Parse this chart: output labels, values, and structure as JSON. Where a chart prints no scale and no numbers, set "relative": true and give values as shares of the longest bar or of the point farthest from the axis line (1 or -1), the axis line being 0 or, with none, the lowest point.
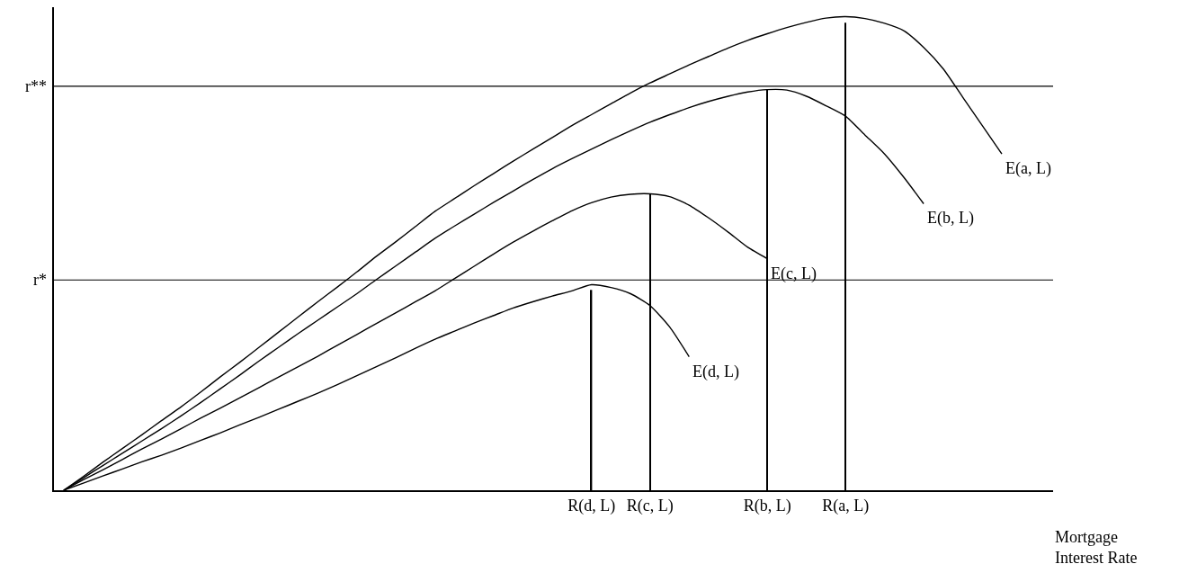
{
  "chart_data": {
    "type": "line",
    "relative": true,
    "xlabel": "Mortgage Interest Rate",
    "categories": [
      null,
      null,
      null,
      null,
      null,
      null,
      null,
      null,
      null,
      null,
      null,
      null,
      null,
      null,
      null,
      null,
      null,
      null,
      null,
      null,
      null,
      null,
      null,
      null,
      null,
      null,
      null,
      "R(d, L)",
      null,
      null,
      "R(c, L)",
      null,
      null,
      null,
      null,
      null,
      "R(b, L)",
      null,
      null,
      null,
      "R(a, L)",
      null,
      null,
      null,
      null,
      null,
      null,
      null,
      null
    ],
    "series": [
      {
        "name": "E(a, L)",
        "color": "#000000",
        "values": [
          0,
          0.029,
          0.059,
          0.088,
          0.117,
          0.147,
          0.176,
          0.207,
          0.239,
          0.27,
          0.302,
          0.334,
          0.366,
          0.398,
          0.429,
          0.461,
          0.494,
          0.525,
          0.557,
          0.589,
          0.616,
          0.643,
          0.669,
          0.695,
          0.72,
          0.745,
          0.77,
          0.793,
          0.816,
          0.839,
          0.86,
          0.879,
          0.898,
          0.916,
          0.934,
          0.95,
          0.964,
          0.977,
          0.988,
          0.997,
          1.0,
          0.996,
          0.986,
          0.97,
          0.935,
          0.89,
          0.83,
          0.77,
          0.71
        ]
      },
      {
        "name": "E(b, L)",
        "color": "#000000",
        "values": [
          0,
          0.026,
          0.052,
          0.078,
          0.104,
          0.13,
          0.157,
          0.185,
          0.214,
          0.243,
          0.273,
          0.302,
          0.331,
          0.359,
          0.387,
          0.415,
          0.445,
          0.474,
          0.503,
          0.532,
          0.558,
          0.583,
          0.608,
          0.632,
          0.656,
          0.679,
          0.7,
          0.72,
          0.74,
          0.759,
          0.777,
          0.793,
          0.808,
          0.821,
          0.832,
          0.841,
          0.846,
          0.845,
          0.832,
          0.812,
          0.79,
          0.75,
          0.71,
          0.66,
          0.605,
          null,
          null,
          null,
          null
        ]
      },
      {
        "name": "E(c, L)",
        "color": "#000000",
        "values": [
          0,
          0.022,
          0.043,
          0.065,
          0.087,
          0.108,
          0.13,
          0.152,
          0.173,
          0.195,
          0.217,
          0.239,
          0.261,
          0.283,
          0.306,
          0.329,
          0.352,
          0.375,
          0.398,
          0.421,
          0.447,
          0.473,
          0.499,
          0.524,
          0.547,
          0.569,
          0.59,
          0.607,
          0.619,
          0.625,
          0.626,
          0.62,
          0.602,
          0.575,
          0.545,
          0.513,
          0.489,
          null,
          null,
          null,
          null,
          null,
          null,
          null,
          null,
          null,
          null,
          null,
          null
        ]
      },
      {
        "name": "E(d, L)",
        "color": "#000000",
        "values": [
          0,
          0.015,
          0.03,
          0.045,
          0.06,
          0.074,
          0.089,
          0.105,
          0.121,
          0.138,
          0.154,
          0.171,
          0.188,
          0.205,
          0.223,
          0.242,
          0.261,
          0.28,
          0.3,
          0.319,
          0.336,
          0.353,
          0.369,
          0.385,
          0.398,
          0.41,
          0.421,
          0.434,
          0.428,
          0.415,
          0.39,
          0.345,
          0.282,
          null,
          null,
          null,
          null,
          null,
          null,
          null,
          null,
          null,
          null,
          null,
          null,
          null,
          null,
          null,
          null
        ]
      },
      {
        "type": "bar",
        "color": "#000000",
        "values": [
          null,
          null,
          null,
          null,
          null,
          null,
          null,
          null,
          null,
          null,
          null,
          null,
          null,
          null,
          null,
          null,
          null,
          null,
          null,
          null,
          null,
          null,
          null,
          null,
          null,
          null,
          null,
          0.423,
          null,
          null,
          0.626,
          null,
          null,
          null,
          null,
          null,
          0.846,
          null,
          null,
          null,
          0.987,
          null,
          null,
          null,
          null,
          null,
          null,
          null,
          null
        ]
      }
    ],
    "ref_lines": [
      {
        "axis": "y",
        "value": 0.853,
        "label": "r**",
        "color": "#000000"
      },
      {
        "axis": "y",
        "value": 0.444,
        "label": "r*",
        "color": "#000000"
      }
    ],
    "legend": false,
    "line_style": "solid"
  }
}
